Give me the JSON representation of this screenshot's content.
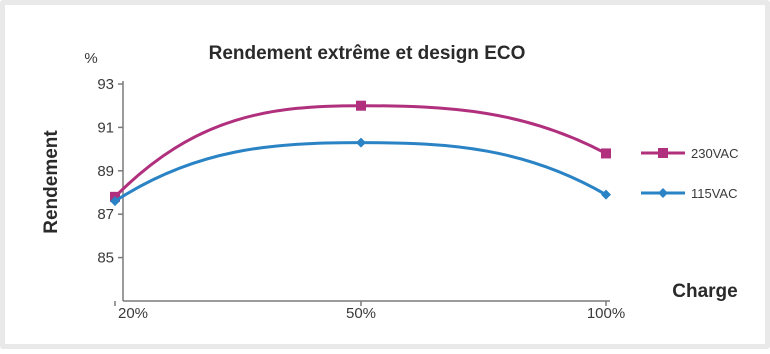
{
  "chart_data": {
    "type": "line",
    "title": "Rendement extrême et design ECO",
    "ylabel": "Rendement",
    "y_unit": "%",
    "xlabel": "Charge",
    "categories": [
      "20%",
      "50%",
      "100%"
    ],
    "ylim": [
      83,
      93
    ],
    "yticks": [
      85,
      87,
      89,
      91,
      93
    ],
    "grid": false,
    "legend_position": "right",
    "series": [
      {
        "name": "230VAC",
        "values": [
          87.8,
          92.0,
          89.8
        ],
        "color": "#b0307e",
        "marker": "square"
      },
      {
        "name": "115VAC",
        "values": [
          87.6,
          90.3,
          87.9
        ],
        "color": "#2a83c4",
        "marker": "diamond"
      }
    ]
  }
}
